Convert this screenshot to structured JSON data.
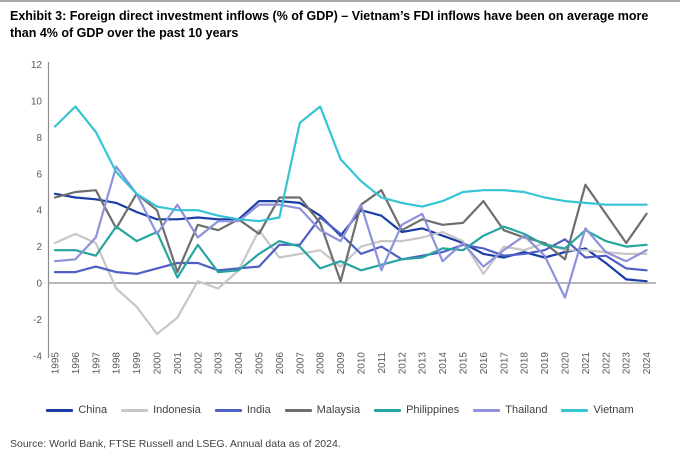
{
  "header": {
    "title": "Exhibit 3: Foreign direct investment inflows (% of GDP) – Vietnam’s FDI inflows have been on average more than 4% of GDP over the past 10 years"
  },
  "source": {
    "text": "Source: World Bank, FTSE Russell and LSEG. Annual data as of 2024."
  },
  "chart_data": {
    "type": "line",
    "title": "Foreign direct investment inflows (% of GDP)",
    "xlabel": "",
    "ylabel": "",
    "x": [
      1995,
      1996,
      1997,
      1998,
      1999,
      2000,
      2001,
      2002,
      2003,
      2004,
      2005,
      2006,
      2007,
      2008,
      2009,
      2010,
      2011,
      2012,
      2013,
      2014,
      2015,
      2016,
      2017,
      2018,
      2019,
      2020,
      2021,
      2022,
      2023,
      2024
    ],
    "ylim": [
      -4,
      12
    ],
    "yticks": [
      -4,
      -2,
      0,
      2,
      4,
      6,
      8,
      10,
      12
    ],
    "grid": false,
    "legend_position": "bottom",
    "axis_color": "#8c8c8c",
    "tick_text_color": "#595959",
    "series": [
      {
        "name": "China",
        "color": "#1b3da6",
        "values": [
          4.9,
          4.7,
          4.6,
          4.4,
          3.9,
          3.5,
          3.5,
          3.6,
          3.5,
          3.5,
          4.5,
          4.5,
          4.4,
          3.7,
          2.6,
          4.0,
          3.7,
          2.8,
          3.0,
          2.6,
          2.2,
          1.6,
          1.4,
          1.7,
          1.4,
          1.7,
          1.9,
          1.1,
          0.2,
          0.1
        ]
      },
      {
        "name": "Indonesia",
        "color": "#c7c7c7",
        "values": [
          2.2,
          2.7,
          2.2,
          -0.3,
          -1.3,
          -2.8,
          -1.9,
          0.1,
          -0.3,
          0.7,
          2.9,
          1.4,
          1.6,
          1.8,
          0.9,
          2.0,
          2.3,
          2.3,
          2.5,
          2.8,
          2.3,
          0.5,
          2.0,
          1.8,
          2.2,
          1.8,
          1.8,
          1.7,
          1.6,
          1.6
        ]
      },
      {
        "name": "India",
        "color": "#4f5fc4",
        "values": [
          0.6,
          0.6,
          0.9,
          0.6,
          0.5,
          0.8,
          1.1,
          1.1,
          0.7,
          0.8,
          0.9,
          2.1,
          2.1,
          3.6,
          2.7,
          1.6,
          2.0,
          1.3,
          1.5,
          1.7,
          2.1,
          1.9,
          1.5,
          1.6,
          1.8,
          2.4,
          1.4,
          1.5,
          0.8,
          0.7
        ]
      },
      {
        "name": "Malaysia",
        "color": "#6e6e6e",
        "values": [
          4.7,
          5.0,
          5.1,
          3.0,
          4.9,
          4.0,
          0.6,
          3.2,
          2.9,
          3.5,
          2.7,
          4.7,
          4.7,
          3.3,
          0.1,
          4.3,
          5.1,
          2.9,
          3.5,
          3.2,
          3.3,
          4.5,
          2.9,
          2.5,
          2.2,
          1.3,
          5.4,
          3.8,
          2.2,
          3.8
        ]
      },
      {
        "name": "Philippines",
        "color": "#27a5a0",
        "values": [
          1.8,
          1.8,
          1.5,
          3.1,
          2.3,
          2.8,
          0.3,
          2.1,
          0.6,
          0.7,
          1.6,
          2.3,
          2.0,
          0.8,
          1.2,
          0.7,
          1.0,
          1.3,
          1.4,
          1.9,
          1.8,
          2.6,
          3.1,
          2.7,
          2.1,
          1.9,
          2.9,
          2.3,
          2.0,
          2.1
        ]
      },
      {
        "name": "Thailand",
        "color": "#8d92da",
        "values": [
          1.2,
          1.3,
          2.5,
          6.4,
          4.9,
          2.7,
          4.3,
          2.5,
          3.4,
          3.4,
          4.3,
          4.3,
          4.1,
          2.9,
          2.3,
          4.3,
          0.7,
          3.2,
          3.8,
          1.2,
          2.2,
          0.9,
          1.8,
          2.6,
          1.5,
          -0.8,
          3.0,
          1.7,
          1.2,
          1.8
        ]
      },
      {
        "name": "Vietnam",
        "color": "#35c4d3",
        "values": [
          8.6,
          9.7,
          8.3,
          6.1,
          4.9,
          4.2,
          4.0,
          4.0,
          3.7,
          3.5,
          3.4,
          3.6,
          8.8,
          9.7,
          6.8,
          5.6,
          4.7,
          4.4,
          4.2,
          4.5,
          5.0,
          5.1,
          5.1,
          5.0,
          4.7,
          4.5,
          4.4,
          4.3,
          4.3,
          4.3
        ]
      }
    ]
  }
}
